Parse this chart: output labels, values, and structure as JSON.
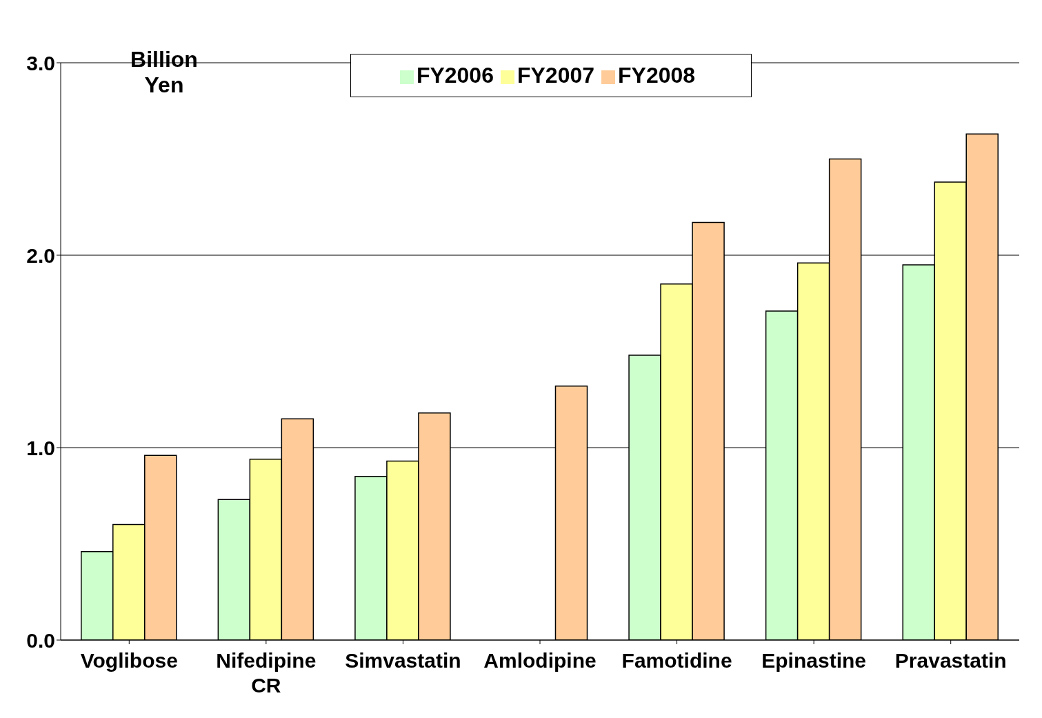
{
  "chart_data": {
    "type": "bar",
    "ylabel": "Billion Yen",
    "categories": [
      "Voglibose",
      "Nifedipine CR",
      "Simvastatin",
      "Amlodipine",
      "Famotidine",
      "Epinastine",
      "Pravastatin"
    ],
    "series": [
      {
        "name": "FY2006",
        "color": "#ccffcc",
        "values": [
          0.46,
          0.73,
          0.85,
          null,
          1.48,
          1.71,
          1.95
        ]
      },
      {
        "name": "FY2007",
        "color": "#ffff99",
        "values": [
          0.6,
          0.94,
          0.93,
          null,
          1.85,
          1.96,
          2.38
        ]
      },
      {
        "name": "FY2008",
        "color": "#ffcc99",
        "values": [
          0.96,
          1.15,
          1.18,
          1.32,
          2.17,
          2.5,
          2.63
        ]
      }
    ],
    "ylim": [
      0,
      3
    ],
    "yticks": [
      {
        "value": 0,
        "label": "0.0"
      },
      {
        "value": 1,
        "label": "1.0"
      },
      {
        "value": 2,
        "label": "2.0"
      },
      {
        "value": 3,
        "label": "3.0"
      }
    ],
    "grid": "y",
    "legend": "top"
  }
}
